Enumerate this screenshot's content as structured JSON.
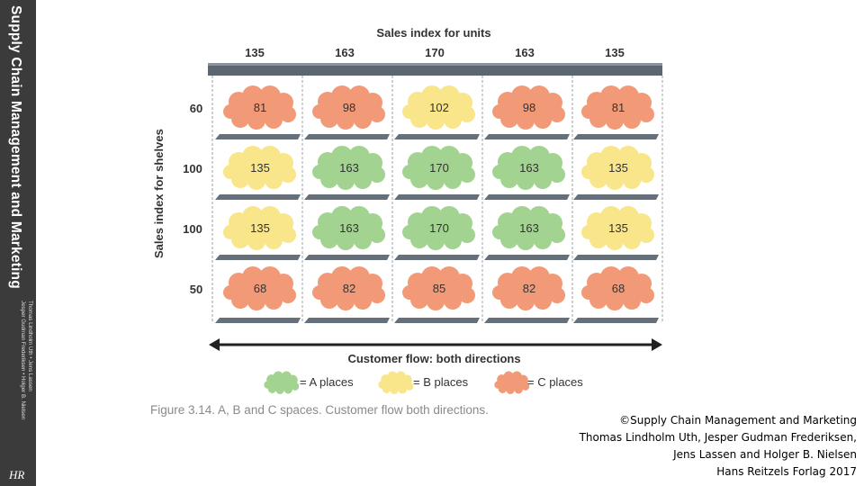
{
  "sidebar": {
    "title": "Supply Chain Management and Marketing",
    "authors_line1": "Thomas Lindholm Uth • Jens Lassen",
    "authors_line2": "Jesper Gudman Frederiksen • Holger B. Nielsen",
    "logo": "HR"
  },
  "figure": {
    "top_title": "Sales index for units",
    "column_values": [
      "135",
      "163",
      "170",
      "163",
      "135"
    ],
    "y_title": "Sales index for shelves",
    "row_values": [
      "60",
      "100",
      "100",
      "50"
    ],
    "cells": [
      [
        {
          "value": "81",
          "cls": "C"
        },
        {
          "value": "98",
          "cls": "C"
        },
        {
          "value": "102",
          "cls": "B"
        },
        {
          "value": "98",
          "cls": "C"
        },
        {
          "value": "81",
          "cls": "C"
        }
      ],
      [
        {
          "value": "135",
          "cls": "B"
        },
        {
          "value": "163",
          "cls": "A"
        },
        {
          "value": "170",
          "cls": "A"
        },
        {
          "value": "163",
          "cls": "A"
        },
        {
          "value": "135",
          "cls": "B"
        }
      ],
      [
        {
          "value": "135",
          "cls": "B"
        },
        {
          "value": "163",
          "cls": "A"
        },
        {
          "value": "170",
          "cls": "A"
        },
        {
          "value": "163",
          "cls": "A"
        },
        {
          "value": "135",
          "cls": "B"
        }
      ],
      [
        {
          "value": "68",
          "cls": "C"
        },
        {
          "value": "82",
          "cls": "C"
        },
        {
          "value": "85",
          "cls": "C"
        },
        {
          "value": "82",
          "cls": "C"
        },
        {
          "value": "68",
          "cls": "C"
        }
      ]
    ],
    "class_colors": {
      "A": "#a3d390",
      "B": "#f9e58a",
      "C": "#f29a78"
    },
    "flow_title": "Customer flow: both directions",
    "legend": [
      {
        "cls": "A",
        "label": "= A places"
      },
      {
        "cls": "B",
        "label": "= B places"
      },
      {
        "cls": "C",
        "label": "= C places"
      }
    ],
    "caption": "Figure 3.14. A, B and C spaces. Customer flow both directions."
  },
  "copyright": [
    "©Supply Chain Management and Marketing",
    "Thomas Lindholm Uth, Jesper Gudman Frederiksen,",
    "Jens Lassen and Holger B. Nielsen",
    "Hans Reitzels Forlag 2017"
  ]
}
